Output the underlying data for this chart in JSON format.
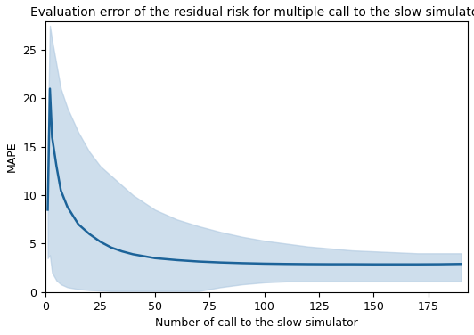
{
  "title": "Evaluation error of the residual risk for multiple call to the slow simulator",
  "xlabel": "Number of call to the slow simulator",
  "ylabel": "MAPE",
  "line_color": "#1c6399",
  "fill_color": "#aec8e0",
  "fill_alpha": 0.6,
  "x": [
    1,
    2,
    3,
    5,
    7,
    10,
    15,
    20,
    25,
    30,
    35,
    40,
    50,
    60,
    70,
    80,
    90,
    100,
    110,
    120,
    130,
    140,
    150,
    160,
    170,
    180,
    190
  ],
  "mean": [
    8.5,
    21.0,
    16.0,
    13.0,
    10.5,
    8.8,
    7.0,
    6.0,
    5.2,
    4.6,
    4.2,
    3.9,
    3.5,
    3.3,
    3.15,
    3.05,
    2.98,
    2.93,
    2.9,
    2.88,
    2.87,
    2.87,
    2.86,
    2.86,
    2.86,
    2.87,
    2.9
  ],
  "upper": [
    16.0,
    27.5,
    26.0,
    23.5,
    21.0,
    19.0,
    16.5,
    14.5,
    13.0,
    12.0,
    11.0,
    10.0,
    8.5,
    7.5,
    6.8,
    6.2,
    5.7,
    5.3,
    5.0,
    4.7,
    4.5,
    4.3,
    4.2,
    4.1,
    4.0,
    4.0,
    4.0
  ],
  "lower": [
    3.5,
    3.8,
    2.0,
    1.2,
    0.8,
    0.5,
    0.3,
    0.2,
    0.15,
    0.1,
    0.1,
    0.1,
    0.1,
    0.1,
    0.1,
    0.5,
    0.8,
    1.0,
    1.1,
    1.1,
    1.1,
    1.1,
    1.1,
    1.1,
    1.1,
    1.1,
    1.1
  ],
  "xlim": [
    0,
    193
  ],
  "ylim": [
    0,
    28
  ],
  "xticks": [
    0,
    25,
    50,
    75,
    100,
    125,
    150,
    175
  ],
  "yticks": [
    0,
    5,
    10,
    15,
    20,
    25
  ],
  "title_fontsize": 10,
  "label_fontsize": 9,
  "tick_fontsize": 9
}
